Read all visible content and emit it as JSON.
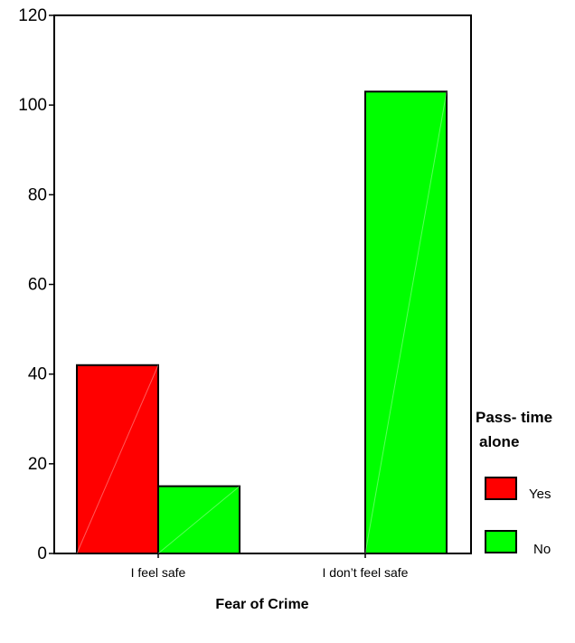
{
  "chart_data": {
    "type": "bar",
    "categories": [
      "I feel safe",
      "I don’t feel safe"
    ],
    "series": [
      {
        "name": "Yes",
        "color": "#ff0000",
        "values": [
          42,
          0
        ]
      },
      {
        "name": "No",
        "color": "#00ff00",
        "values": [
          15,
          103
        ]
      }
    ],
    "xlabel": "Fear of Crime",
    "ylabel": "",
    "ylim": [
      0,
      120
    ],
    "yticks": [
      "0",
      "20",
      "40",
      "60",
      "80",
      "100",
      "120"
    ],
    "grid": false,
    "legend": {
      "title_line1": "Pass- time",
      "title_line2": "alone",
      "placement": "right"
    }
  }
}
